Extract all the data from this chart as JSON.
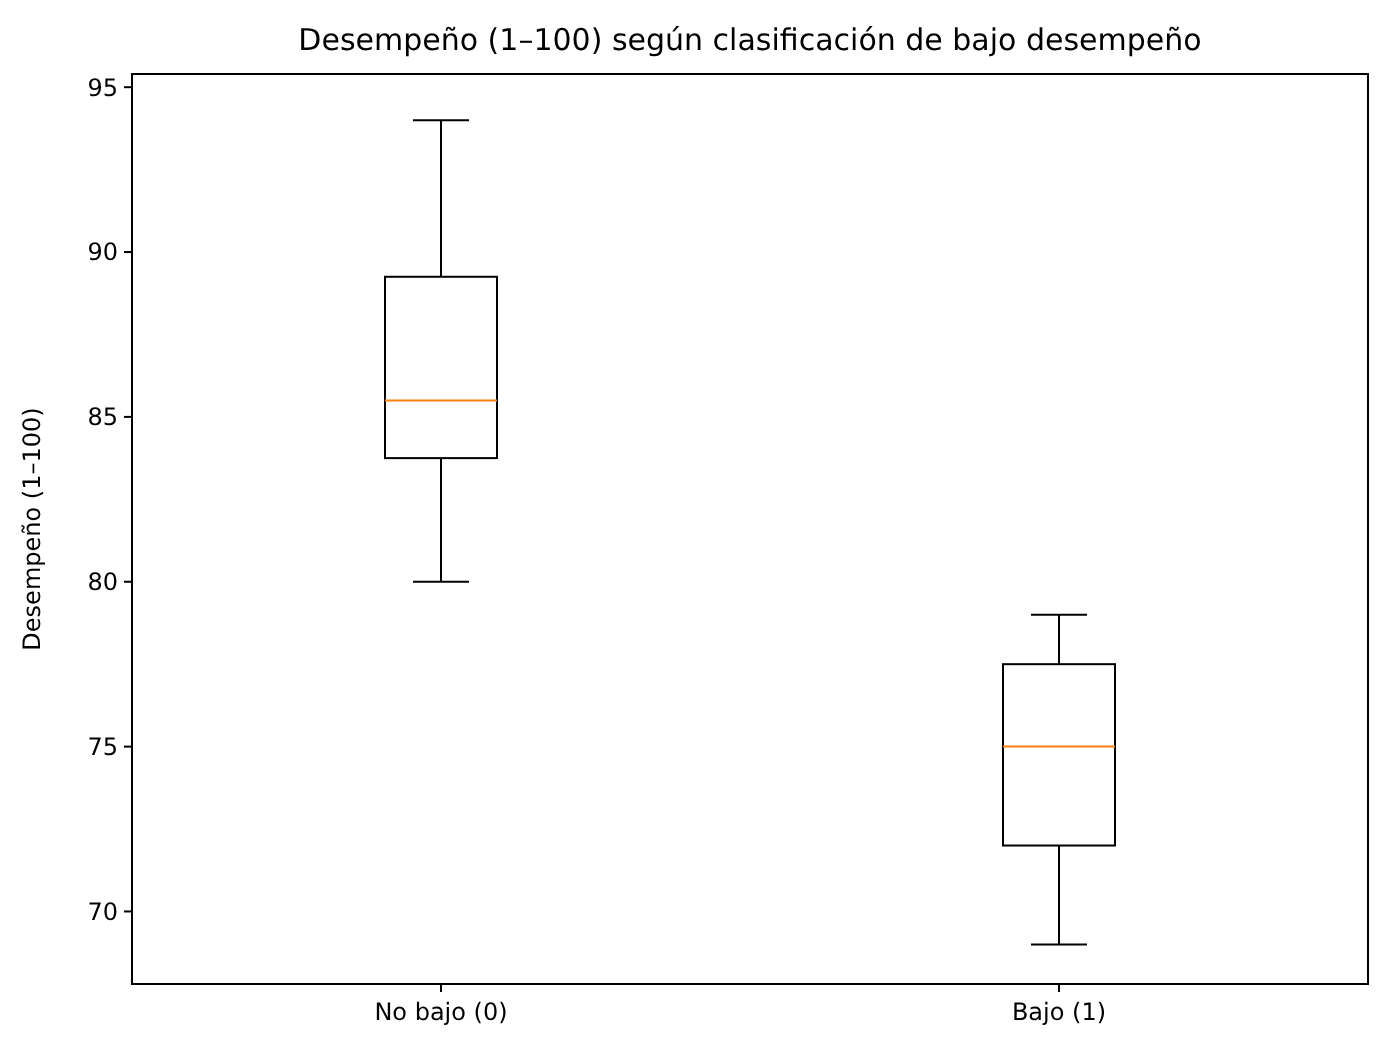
{
  "chart_data": {
    "type": "box",
    "title": "Desempeño (1–100) según clasificación de bajo desempeño",
    "ylabel": "Desempeño (1–100)",
    "categories": [
      "No bajo (0)",
      "Bajo (1)"
    ],
    "boxes": [
      {
        "low": 80,
        "q1": 83.75,
        "median": 85.5,
        "q3": 89.25,
        "high": 94
      },
      {
        "low": 69,
        "q1": 72,
        "median": 75,
        "q3": 77.5,
        "high": 79
      }
    ],
    "color": "#000000",
    "ylim": [
      67.8,
      95.4
    ],
    "yticks": [
      70,
      75,
      80,
      85,
      90,
      95
    ],
    "grid": false
  }
}
